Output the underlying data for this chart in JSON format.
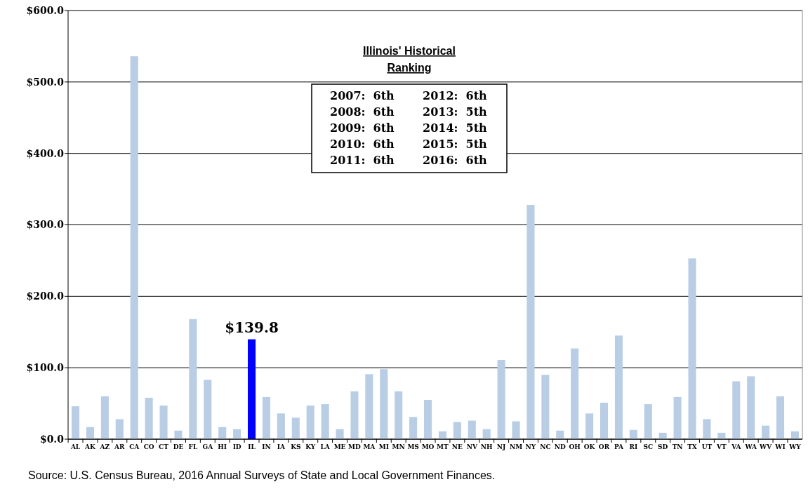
{
  "chart_data": {
    "type": "bar",
    "categories": [
      "AL",
      "AK",
      "AZ",
      "AR",
      "CA",
      "CO",
      "CT",
      "DE",
      "FL",
      "GA",
      "HI",
      "ID",
      "IL",
      "IN",
      "IA",
      "KS",
      "KY",
      "LA",
      "ME",
      "MD",
      "MA",
      "MI",
      "MN",
      "MS",
      "MO",
      "MT",
      "NE",
      "NV",
      "NH",
      "NJ",
      "NM",
      "NY",
      "NC",
      "ND",
      "OH",
      "OK",
      "OR",
      "PA",
      "RI",
      "SC",
      "SD",
      "TN",
      "TX",
      "UT",
      "VT",
      "VA",
      "WA",
      "WV",
      "WI",
      "WY"
    ],
    "values": [
      46,
      17,
      60,
      28,
      536,
      58,
      47,
      12,
      168,
      83,
      17,
      14,
      139.8,
      59,
      36,
      30,
      47,
      49,
      14,
      67,
      91,
      98,
      67,
      31,
      55,
      11,
      24,
      26,
      14,
      111,
      25,
      328,
      90,
      12,
      127,
      36,
      51,
      145,
      13,
      49,
      9,
      59,
      253,
      28,
      9,
      81,
      88,
      19,
      60,
      11
    ],
    "colors": [
      "#b9cde5",
      "#b9cde5",
      "#b9cde5",
      "#b9cde5",
      "#b9cde5",
      "#b9cde5",
      "#b9cde5",
      "#b9cde5",
      "#b9cde5",
      "#b9cde5",
      "#b9cde5",
      "#b9cde5",
      "#0000ff",
      "#b9cde5",
      "#b9cde5",
      "#b9cde5",
      "#b9cde5",
      "#b9cde5",
      "#b9cde5",
      "#b9cde5",
      "#b9cde5",
      "#b9cde5",
      "#b9cde5",
      "#b9cde5",
      "#b9cde5",
      "#b9cde5",
      "#b9cde5",
      "#b9cde5",
      "#b9cde5",
      "#b9cde5",
      "#b9cde5",
      "#b9cde5",
      "#b9cde5",
      "#b9cde5",
      "#b9cde5",
      "#b9cde5",
      "#b9cde5",
      "#b9cde5",
      "#b9cde5",
      "#b9cde5",
      "#b9cde5",
      "#b9cde5",
      "#b9cde5",
      "#b9cde5",
      "#b9cde5",
      "#b9cde5",
      "#b9cde5",
      "#b9cde5",
      "#b9cde5",
      "#b9cde5"
    ],
    "value_labels": [
      null,
      null,
      null,
      null,
      null,
      null,
      null,
      null,
      null,
      null,
      null,
      null,
      "$139.8",
      null,
      null,
      null,
      null,
      null,
      null,
      null,
      null,
      null,
      null,
      null,
      null,
      null,
      null,
      null,
      null,
      null,
      null,
      null,
      null,
      null,
      null,
      null,
      null,
      null,
      null,
      null,
      null,
      null,
      null,
      null,
      null,
      null,
      null,
      null,
      null,
      null
    ],
    "ylim": [
      0,
      600
    ],
    "yticks": [
      {
        "value": 0,
        "label": "$0.0"
      },
      {
        "value": 100,
        "label": "$100.0"
      },
      {
        "value": 200,
        "label": "$200.0"
      },
      {
        "value": 300,
        "label": "$300.0"
      },
      {
        "value": 400,
        "label": "$400.0"
      },
      {
        "value": 500,
        "label": "$500.0"
      },
      {
        "value": 600,
        "label": "$600.0"
      }
    ],
    "grid": "y",
    "annotations": [
      "Illinois' Historical",
      "Ranking",
      "2007:  6th",
      "2008:  6th",
      "2009:  6th",
      "2010:  6th",
      "2011:  6th",
      "2012:  6th",
      "2013:  5th",
      "2014:  5th",
      "2015:  5th",
      "2016:  6th",
      "Source: U.S. Census Bureau,  2016 Annual Surveys of State and Local Government Finances."
    ]
  }
}
